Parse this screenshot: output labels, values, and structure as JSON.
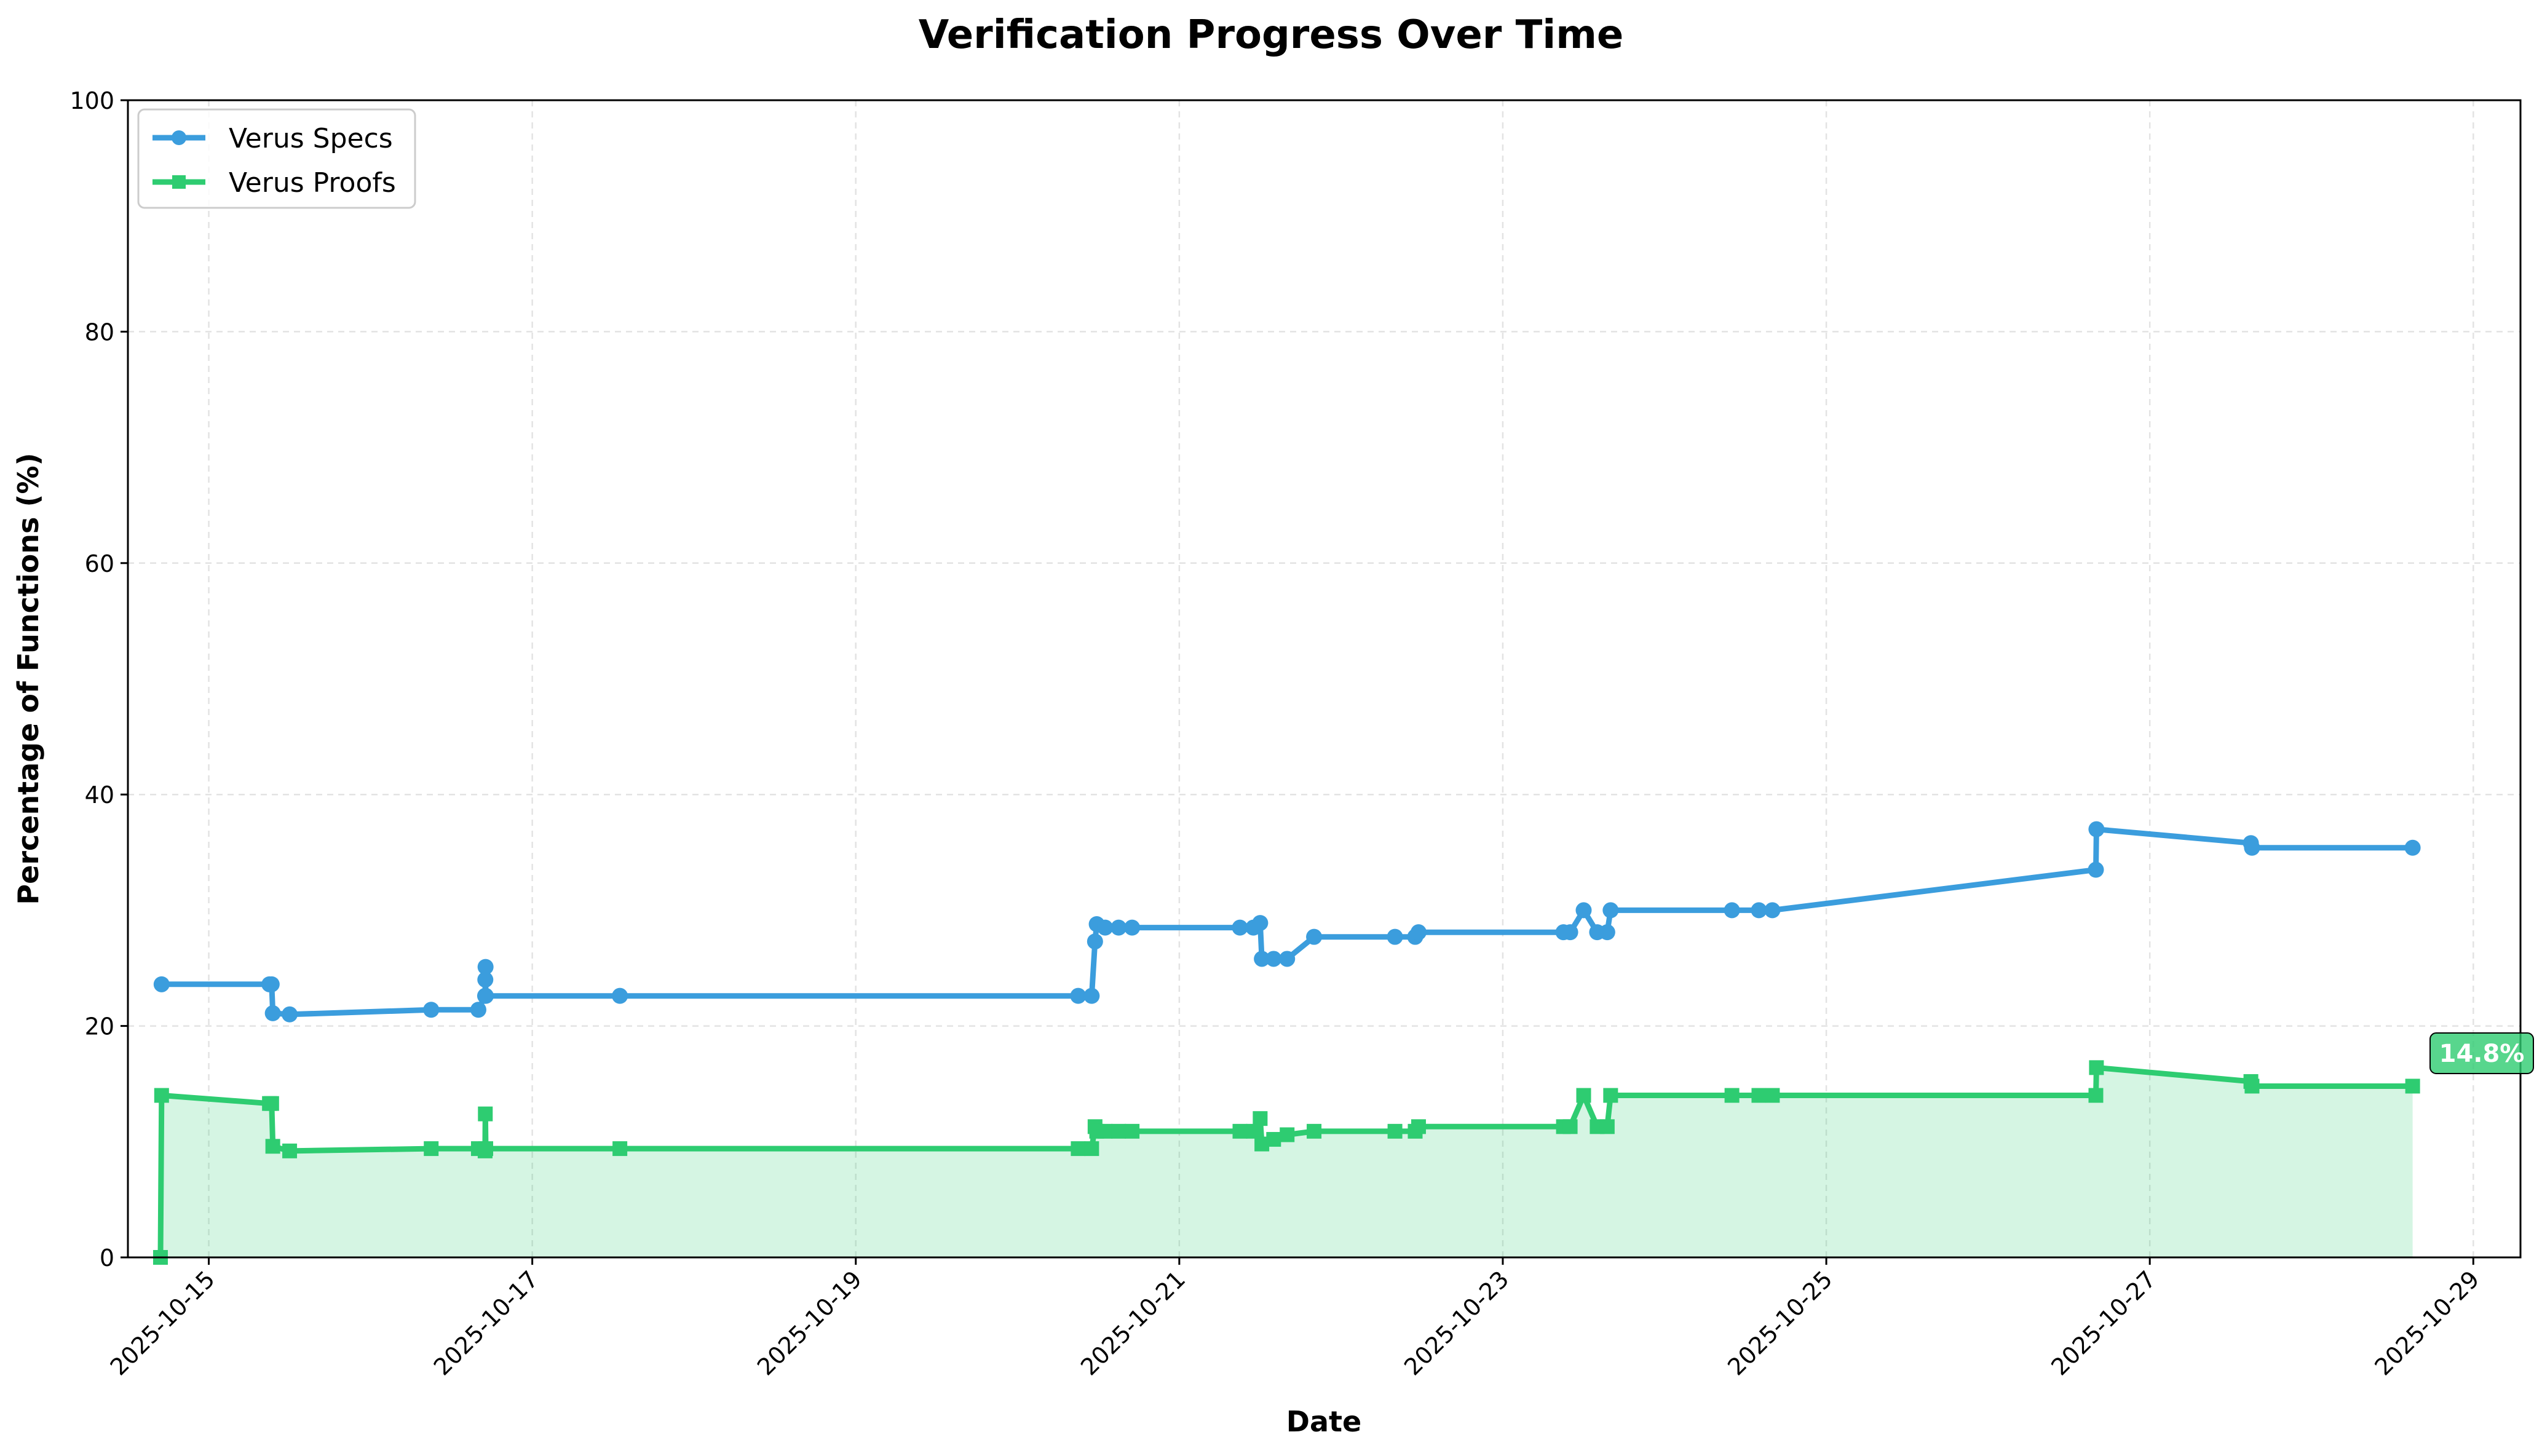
{
  "chart_data": {
    "type": "line",
    "title": "Verification Progress Over Time",
    "xlabel": "Date",
    "ylabel": "Percentage of Functions (%)",
    "ylim": [
      0,
      100
    ],
    "yticks": [
      0,
      20,
      40,
      60,
      80,
      100
    ],
    "xlim": [
      "2025-10-14T12:00",
      "2025-10-29T07:00"
    ],
    "xticks": [
      "2025-10-15",
      "2025-10-17",
      "2025-10-19",
      "2025-10-21",
      "2025-10-23",
      "2025-10-25",
      "2025-10-27",
      "2025-10-29"
    ],
    "grid": true,
    "legend_position": "top-left",
    "end_annotation": "14.8%",
    "series": [
      {
        "name": "Verus Specs",
        "color": "#3b9ddd",
        "marker": "circle",
        "points": [
          [
            "2025-10-14T17:00",
            23.6
          ],
          [
            "2025-10-15T09:00",
            23.6
          ],
          [
            "2025-10-15T09:20",
            23.6
          ],
          [
            "2025-10-15T09:30",
            21.1
          ],
          [
            "2025-10-15T12:00",
            21.0
          ],
          [
            "2025-10-16T09:00",
            21.4
          ],
          [
            "2025-10-16T16:00",
            21.4
          ],
          [
            "2025-10-16T17:00",
            22.6
          ],
          [
            "2025-10-16T17:02",
            24.0
          ],
          [
            "2025-10-16T17:04",
            25.1
          ],
          [
            "2025-10-16T17:06",
            22.6
          ],
          [
            "2025-10-17T13:00",
            22.6
          ],
          [
            "2025-10-20T09:00",
            22.6
          ],
          [
            "2025-10-20T11:00",
            22.6
          ],
          [
            "2025-10-20T11:30",
            27.3
          ],
          [
            "2025-10-20T11:45",
            28.8
          ],
          [
            "2025-10-20T13:00",
            28.5
          ],
          [
            "2025-10-20T15:00",
            28.5
          ],
          [
            "2025-10-20T17:00",
            28.5
          ],
          [
            "2025-10-21T09:00",
            28.5
          ],
          [
            "2025-10-21T11:00",
            28.5
          ],
          [
            "2025-10-21T12:00",
            28.9
          ],
          [
            "2025-10-21T12:15",
            25.8
          ],
          [
            "2025-10-21T14:00",
            25.8
          ],
          [
            "2025-10-21T16:00",
            25.8
          ],
          [
            "2025-10-21T20:00",
            27.7
          ],
          [
            "2025-10-22T08:00",
            27.7
          ],
          [
            "2025-10-22T11:00",
            27.7
          ],
          [
            "2025-10-22T11:30",
            28.1
          ],
          [
            "2025-10-23T09:00",
            28.1
          ],
          [
            "2025-10-23T10:00",
            28.1
          ],
          [
            "2025-10-23T12:00",
            30.0
          ],
          [
            "2025-10-23T14:00",
            28.1
          ],
          [
            "2025-10-23T15:30",
            28.1
          ],
          [
            "2025-10-23T16:00",
            30.0
          ],
          [
            "2025-10-24T10:00",
            30.0
          ],
          [
            "2025-10-24T14:00",
            30.0
          ],
          [
            "2025-10-24T16:00",
            30.0
          ],
          [
            "2025-10-26T16:00",
            33.5
          ],
          [
            "2025-10-26T16:05",
            37.0
          ],
          [
            "2025-10-27T15:00",
            35.8
          ],
          [
            "2025-10-27T15:10",
            35.4
          ],
          [
            "2025-10-28T15:00",
            35.4
          ]
        ]
      },
      {
        "name": "Verus Proofs",
        "color": "#2ecc71",
        "marker": "square",
        "points": [
          [
            "2025-10-14T16:50",
            0.0
          ],
          [
            "2025-10-14T17:00",
            14.0
          ],
          [
            "2025-10-15T09:00",
            13.3
          ],
          [
            "2025-10-15T09:20",
            13.3
          ],
          [
            "2025-10-15T09:30",
            9.6
          ],
          [
            "2025-10-15T12:00",
            9.2
          ],
          [
            "2025-10-16T09:00",
            9.4
          ],
          [
            "2025-10-16T16:00",
            9.4
          ],
          [
            "2025-10-16T17:00",
            9.2
          ],
          [
            "2025-10-16T17:02",
            12.4
          ],
          [
            "2025-10-16T17:06",
            9.4
          ],
          [
            "2025-10-17T13:00",
            9.4
          ],
          [
            "2025-10-20T09:00",
            9.4
          ],
          [
            "2025-10-20T11:00",
            9.4
          ],
          [
            "2025-10-20T11:30",
            11.3
          ],
          [
            "2025-10-20T11:45",
            10.9
          ],
          [
            "2025-10-20T13:00",
            10.9
          ],
          [
            "2025-10-20T15:00",
            10.9
          ],
          [
            "2025-10-20T17:00",
            10.9
          ],
          [
            "2025-10-21T09:00",
            10.9
          ],
          [
            "2025-10-21T11:00",
            10.9
          ],
          [
            "2025-10-21T12:00",
            12.0
          ],
          [
            "2025-10-21T12:15",
            9.8
          ],
          [
            "2025-10-21T14:00",
            10.2
          ],
          [
            "2025-10-21T16:00",
            10.6
          ],
          [
            "2025-10-21T20:00",
            10.9
          ],
          [
            "2025-10-22T08:00",
            10.9
          ],
          [
            "2025-10-22T11:00",
            10.9
          ],
          [
            "2025-10-22T11:30",
            11.3
          ],
          [
            "2025-10-23T09:00",
            11.3
          ],
          [
            "2025-10-23T10:00",
            11.3
          ],
          [
            "2025-10-23T12:00",
            14.0
          ],
          [
            "2025-10-23T14:00",
            11.3
          ],
          [
            "2025-10-23T15:30",
            11.3
          ],
          [
            "2025-10-23T16:00",
            14.0
          ],
          [
            "2025-10-24T10:00",
            14.0
          ],
          [
            "2025-10-24T14:00",
            14.0
          ],
          [
            "2025-10-24T16:00",
            14.0
          ],
          [
            "2025-10-26T16:00",
            14.0
          ],
          [
            "2025-10-26T16:05",
            16.4
          ],
          [
            "2025-10-27T15:00",
            15.2
          ],
          [
            "2025-10-27T15:10",
            14.8
          ],
          [
            "2025-10-28T15:00",
            14.8
          ]
        ]
      }
    ]
  }
}
